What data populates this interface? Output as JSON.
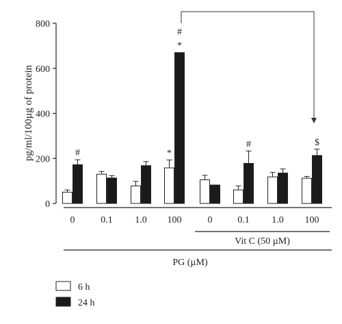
{
  "chart_data": {
    "type": "bar",
    "title": "",
    "ylabel": "pg/ml/100µg of protein",
    "ylim": [
      0,
      800
    ],
    "yticks": [
      "0",
      "200",
      "400",
      "600",
      "800"
    ],
    "categories": [
      "0",
      "0.1",
      "1.0",
      "100",
      "0",
      "0.1",
      "1.0",
      "100"
    ],
    "group_labels": [
      {
        "label": "Vit C (50 µM)",
        "categories": [
          4,
          5,
          6,
          7
        ]
      },
      {
        "label": "PG (µM)",
        "categories": [
          0,
          1,
          2,
          3,
          4,
          5,
          6,
          7
        ]
      }
    ],
    "series": [
      {
        "name": "6 h",
        "color": "#ffffff",
        "values": [
          50,
          130,
          78,
          158,
          105,
          60,
          118,
          112
        ],
        "errors": [
          10,
          12,
          20,
          35,
          20,
          18,
          20,
          8
        ]
      },
      {
        "name": "24 h",
        "color": "#1a1a1a",
        "values": [
          172,
          113,
          168,
          670,
          82,
          178,
          135,
          213
        ],
        "errors": [
          22,
          10,
          18,
          0,
          0,
          55,
          18,
          28
        ]
      }
    ],
    "annotations": [
      {
        "series": 1,
        "category": 0,
        "text": "#"
      },
      {
        "series": 0,
        "category": 3,
        "text": "*"
      },
      {
        "series": 1,
        "category": 3,
        "text": "*"
      },
      {
        "series": 1,
        "category": 3,
        "text": "#"
      },
      {
        "series": 1,
        "category": 5,
        "text": "#"
      },
      {
        "series": 1,
        "category": 7,
        "text": "$"
      }
    ],
    "comparison_bracket": {
      "from_category": 3,
      "to_category": 7
    },
    "legend_position": "bottom-left"
  }
}
